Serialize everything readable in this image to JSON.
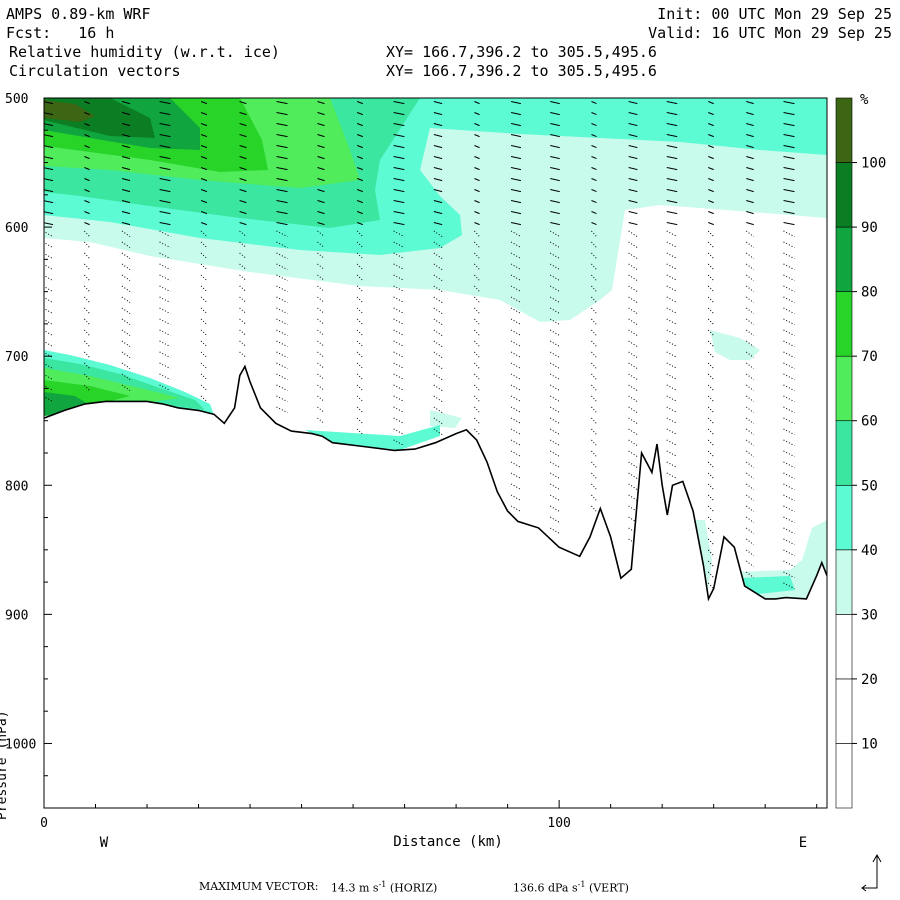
{
  "header": {
    "model": "AMPS 0.89-km WRF",
    "fcst": "Fcst:   16 h",
    "init": "Init: 00 UTC Mon 29 Sep 25",
    "valid": "Valid: 16 UTC Mon 29 Sep 25",
    "field1": "Relative humidity (w.r.t. ice)",
    "field2": "Circulation vectors",
    "xy1": "XY= 166.7,396.2 to 305.5,495.6",
    "xy2": "XY= 166.7,396.2 to 305.5,495.6"
  },
  "footer": {
    "max_vector_label": "MAXIMUM VECTOR:",
    "horiz": "14.3 m s",
    "horiz_exp": "-1",
    "horiz_tag": "(HORIZ)",
    "vert": "136.6 dPa s",
    "vert_exp": "-1",
    "vert_tag": "(VERT)"
  },
  "chart_data": {
    "type": "heatmap",
    "title": "Relative humidity (w.r.t. ice)",
    "overlay": "Circulation vectors",
    "xlabel": "Distance (km)",
    "ylabel": "Pressure (hPa)",
    "xlim": [
      0,
      152
    ],
    "ylim": [
      1050,
      500
    ],
    "x_ticks": [
      0,
      100
    ],
    "y_ticks": [
      500,
      600,
      700,
      800,
      900,
      1000
    ],
    "direction_labels": {
      "west": "W",
      "east": "E"
    },
    "colorbar": {
      "unit": "%",
      "levels": [
        10,
        20,
        30,
        40,
        50,
        60,
        70,
        80,
        90,
        100
      ],
      "colors": [
        "#ffffff",
        "#ffffff",
        "#ffffff",
        "#c8fbec",
        "#5cfbd4",
        "#3ae6a0",
        "#50ec5c",
        "#28d428",
        "#11a53f",
        "#0b7d22",
        "#3c6614"
      ]
    },
    "terrain_pressure_hPa": [
      [
        0,
        748
      ],
      [
        4,
        742
      ],
      [
        8,
        737
      ],
      [
        12,
        735
      ],
      [
        20,
        735
      ],
      [
        23,
        737
      ],
      [
        26,
        740
      ],
      [
        30,
        742
      ],
      [
        33,
        745
      ],
      [
        35,
        752
      ],
      [
        37,
        740
      ],
      [
        38,
        715
      ],
      [
        39,
        708
      ],
      [
        40,
        720
      ],
      [
        42,
        740
      ],
      [
        45,
        752
      ],
      [
        48,
        758
      ],
      [
        52,
        760
      ],
      [
        54,
        762
      ],
      [
        56,
        767
      ],
      [
        62,
        770
      ],
      [
        68,
        773
      ],
      [
        72,
        772
      ],
      [
        76,
        767
      ],
      [
        80,
        760
      ],
      [
        82,
        757
      ],
      [
        84,
        765
      ],
      [
        86,
        782
      ],
      [
        88,
        805
      ],
      [
        90,
        820
      ],
      [
        92,
        828
      ],
      [
        96,
        833
      ],
      [
        100,
        848
      ],
      [
        104,
        855
      ],
      [
        106,
        840
      ],
      [
        108,
        818
      ],
      [
        110,
        840
      ],
      [
        112,
        872
      ],
      [
        114,
        865
      ],
      [
        115,
        820
      ],
      [
        116,
        775
      ],
      [
        118,
        790
      ],
      [
        119,
        768
      ],
      [
        120,
        800
      ],
      [
        121,
        823
      ],
      [
        122,
        800
      ],
      [
        124,
        797
      ],
      [
        126,
        820
      ],
      [
        128,
        862
      ],
      [
        129,
        888
      ],
      [
        130,
        880
      ],
      [
        132,
        840
      ],
      [
        134,
        848
      ],
      [
        136,
        878
      ],
      [
        138,
        883
      ],
      [
        140,
        888
      ],
      [
        142,
        888
      ],
      [
        144,
        887
      ],
      [
        148,
        888
      ],
      [
        150,
        870
      ],
      [
        151,
        860
      ],
      [
        152,
        870
      ]
    ]
  }
}
